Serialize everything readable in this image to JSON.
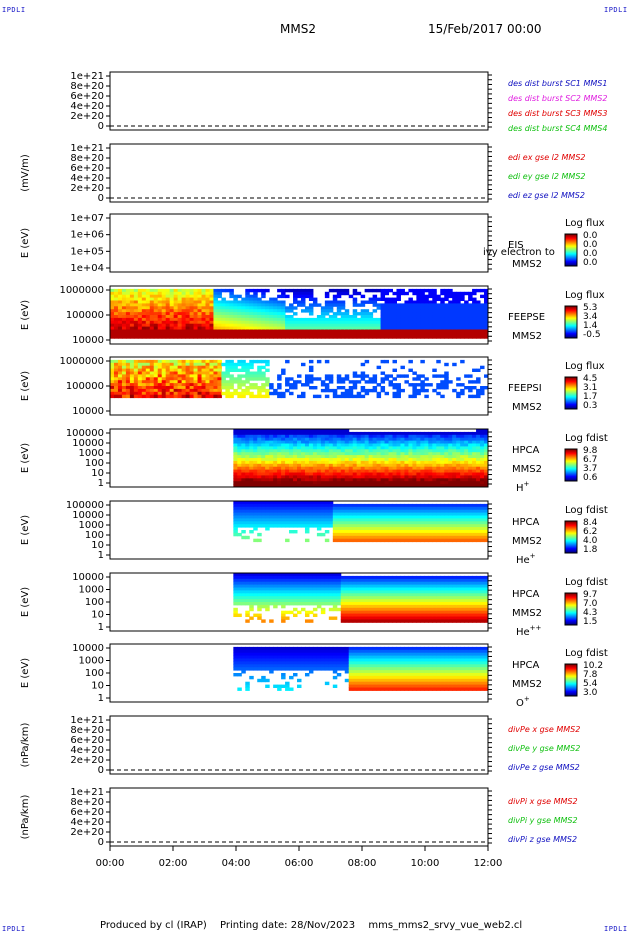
{
  "corners": {
    "tl": "IPDLI",
    "tr": "IPDLI",
    "bl": "IPDLI",
    "br": "IPDLI"
  },
  "header": {
    "spacecraft": "MMS2",
    "date": "15/Feb/2017 00:00"
  },
  "footer": {
    "producer": "Produced by cl (IRAP)",
    "printing": "Printing date: 28/Nov/2023",
    "file": "mms_mms2_srvy_vue_web2.cl"
  },
  "colors": {
    "red": "#e00000",
    "green": "#10c010",
    "blue": "#1010c0",
    "magenta": "#e020e0",
    "axis": "#000000"
  },
  "chart_data": [
    {
      "type": "line",
      "ylabel": "",
      "ticks": [
        "1e+21",
        "8e+20",
        "6e+20",
        "4e+20",
        "2e+20",
        "0"
      ],
      "legend": [
        {
          "text": "des dist burst SC1 MMS1",
          "color": "#1010c0"
        },
        {
          "text": "des dist burst SC2 MMS2",
          "color": "#e020e0"
        },
        {
          "text": "des dist burst SC3 MMS3",
          "color": "#e00000"
        },
        {
          "text": "des dist burst SC4 MMS4",
          "color": "#10c010"
        }
      ],
      "series": [],
      "zero_line": true
    },
    {
      "type": "line",
      "ylabel": "(mV/m)",
      "ticks": [
        "1e+21",
        "8e+20",
        "6e+20",
        "4e+20",
        "2e+20",
        "0"
      ],
      "legend": [
        {
          "text": "edi ex gse l2 MMS2",
          "color": "#e00000"
        },
        {
          "text": "edi ey gse l2 MMS2",
          "color": "#10c010"
        },
        {
          "text": "edi ez gse l2 MMS2",
          "color": "#1010c0"
        }
      ],
      "series": [],
      "zero_line": true
    },
    {
      "type": "heatmap",
      "ylabel": "E (eV)",
      "ticks": [
        "1e+07",
        "1e+06",
        "1e+05",
        "1e+04"
      ],
      "instrument": [
        "EIS",
        "MMS2"
      ],
      "overlay": "ivy electron to",
      "colorbar": {
        "title": "Log flux",
        "labels": [
          "0.0",
          "0.0",
          "0.0",
          "0.0"
        ]
      },
      "pattern": "empty"
    },
    {
      "type": "heatmap",
      "ylabel": "E (eV)",
      "ticks": [
        "1000000",
        "100000",
        "10000"
      ],
      "instrument": [
        "FEEPSE",
        "MMS2"
      ],
      "colorbar": {
        "title": "Log flux",
        "labels": [
          "5.3",
          "3.4",
          "1.4",
          "-0.5"
        ]
      },
      "pattern": "feepse"
    },
    {
      "type": "heatmap",
      "ylabel": "E (eV)",
      "ticks": [
        "1000000",
        "100000",
        "10000"
      ],
      "instrument": [
        "FEEPSI",
        "MMS2"
      ],
      "colorbar": {
        "title": "Log flux",
        "labels": [
          "4.5",
          "3.1",
          "1.7",
          "0.3"
        ]
      },
      "pattern": "feepsi"
    },
    {
      "type": "heatmap",
      "ylabel": "E (eV)",
      "ticks": [
        "100000",
        "10000",
        "1000",
        "100",
        "10",
        "1"
      ],
      "instrument": [
        "HPCA",
        "MMS2"
      ],
      "species": "H",
      "species_sup": "+",
      "colorbar": {
        "title": "Log fdist",
        "labels": [
          "9.8",
          "6.7",
          "3.7",
          "0.6"
        ]
      },
      "pattern": "hplus"
    },
    {
      "type": "heatmap",
      "ylabel": "E (eV)",
      "ticks": [
        "100000",
        "10000",
        "1000",
        "100",
        "10",
        "1"
      ],
      "instrument": [
        "HPCA",
        "MMS2"
      ],
      "species": "He",
      "species_sup": "+",
      "colorbar": {
        "title": "Log fdist",
        "labels": [
          "8.4",
          "6.2",
          "4.0",
          "1.8"
        ]
      },
      "pattern": "heplus"
    },
    {
      "type": "heatmap",
      "ylabel": "E (eV)",
      "ticks": [
        "10000",
        "1000",
        "100",
        "10",
        "1"
      ],
      "instrument": [
        "HPCA",
        "MMS2"
      ],
      "species": "He",
      "species_sup": "++",
      "colorbar": {
        "title": "Log fdist",
        "labels": [
          "9.7",
          "7.0",
          "4.3",
          "1.5"
        ]
      },
      "pattern": "heplusplus"
    },
    {
      "type": "heatmap",
      "ylabel": "E (eV)",
      "ticks": [
        "10000",
        "1000",
        "100",
        "10",
        "1"
      ],
      "instrument": [
        "HPCA",
        "MMS2"
      ],
      "species": "O",
      "species_sup": "+",
      "colorbar": {
        "title": "Log fdist",
        "labels": [
          "10.2",
          "7.8",
          "5.4",
          "3.0"
        ]
      },
      "pattern": "oplus"
    },
    {
      "type": "line",
      "ylabel": "(nPa/km)",
      "ticks": [
        "1e+21",
        "8e+20",
        "6e+20",
        "4e+20",
        "2e+20",
        "0"
      ],
      "legend": [
        {
          "text": "divPe x gse MMS2",
          "color": "#e00000"
        },
        {
          "text": "divPe y gse MMS2",
          "color": "#10c010"
        },
        {
          "text": "divPe z gse MMS2",
          "color": "#1010c0"
        }
      ],
      "series": [],
      "zero_line": true
    },
    {
      "type": "line",
      "ylabel": "(nPa/km)",
      "ticks": [
        "1e+21",
        "8e+20",
        "6e+20",
        "4e+20",
        "2e+20",
        "0"
      ],
      "legend": [
        {
          "text": "divPi x gse MMS2",
          "color": "#e00000"
        },
        {
          "text": "divPi y gse MMS2",
          "color": "#10c010"
        },
        {
          "text": "divPi z gse MMS2",
          "color": "#1010c0"
        }
      ],
      "series": [],
      "zero_line": true
    }
  ],
  "time_axis": {
    "ticks": [
      "00:00",
      "02:00",
      "04:00",
      "06:00",
      "08:00",
      "10:00",
      "12:00"
    ],
    "start_hour": 0,
    "end_hour": 12
  }
}
